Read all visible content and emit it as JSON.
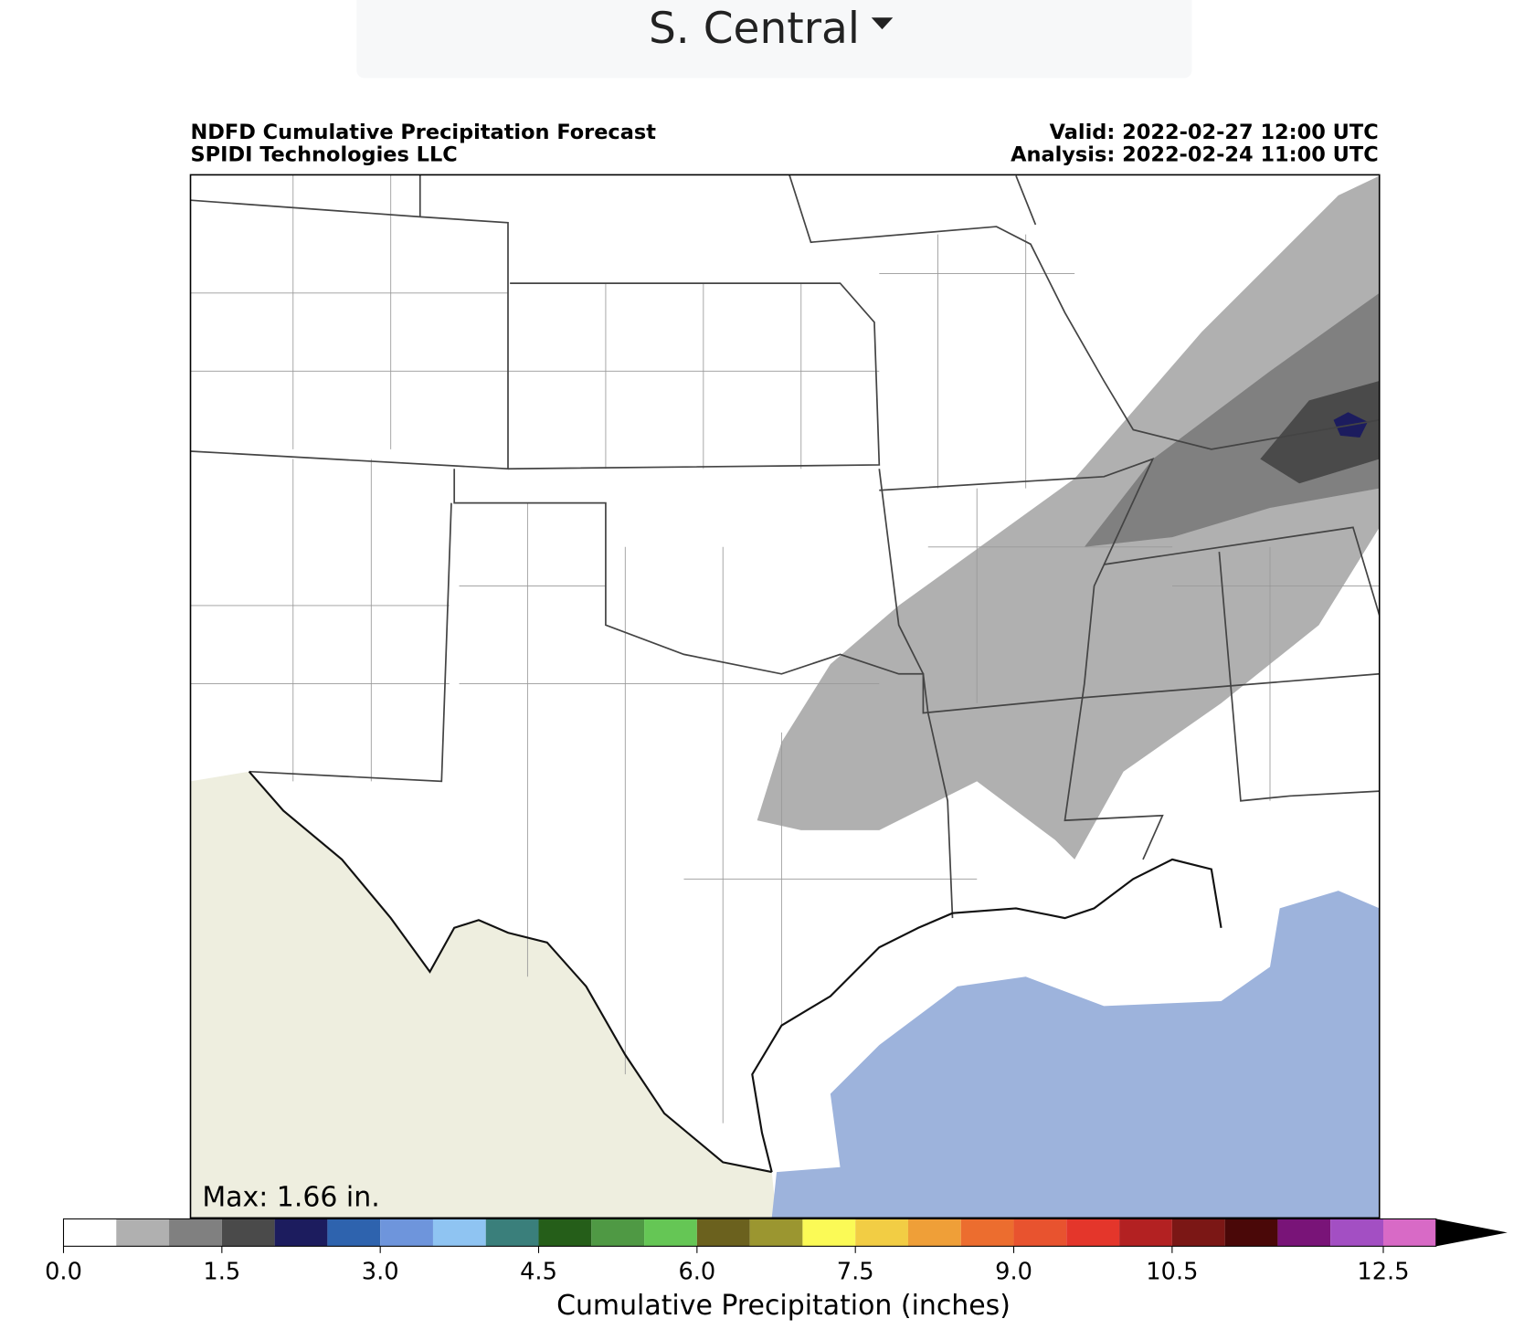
{
  "dropdown": {
    "label": "S. Central"
  },
  "map": {
    "title_left": [
      "NDFD Cumulative Precipitation Forecast",
      "SPIDI Technologies LLC"
    ],
    "title_right": [
      "Valid: 2022-02-27 12:00 UTC",
      "Analysis: 2022-02-24 11:00 UTC"
    ],
    "max_label": "Max: 1.66 in."
  },
  "colorbar": {
    "label": "Cumulative Precipitation (inches)",
    "lim": [
      0,
      13
    ],
    "boundaries": [
      0,
      0.5,
      1,
      1.5,
      2,
      2.5,
      3,
      3.5,
      4,
      4.5,
      5,
      5.5,
      6,
      6.5,
      7,
      7.5,
      8,
      8.5,
      9,
      9.5,
      10,
      10.5,
      11,
      11.5,
      12,
      12.5,
      13
    ],
    "colors": [
      "#ffffff",
      "#b0b0b0",
      "#808080",
      "#4a4a4a",
      "#1c1c5e",
      "#2e63ae",
      "#6e95dc",
      "#8fc4f2",
      "#3a7f7b",
      "#255e19",
      "#4f9944",
      "#65c655",
      "#6b611e",
      "#9b9630",
      "#fbfa56",
      "#f2cd44",
      "#ef9f38",
      "#ec6d2f",
      "#e8532f",
      "#e4362b",
      "#b32122",
      "#7b1715",
      "#4a0808",
      "#791478",
      "#a34fc3",
      "#d86ac6"
    ],
    "extend_color": "#000000",
    "ticks": [
      {
        "value": 0,
        "label": "0.0"
      },
      {
        "value": 1.5,
        "label": "1.5"
      },
      {
        "value": 3,
        "label": "3.0"
      },
      {
        "value": 4.5,
        "label": "4.5"
      },
      {
        "value": 6,
        "label": "6.0"
      },
      {
        "value": 7.5,
        "label": "7.5"
      },
      {
        "value": 9,
        "label": "9.0"
      },
      {
        "value": 10.5,
        "label": "10.5"
      },
      {
        "value": 12.5,
        "label": "12.5"
      }
    ]
  }
}
